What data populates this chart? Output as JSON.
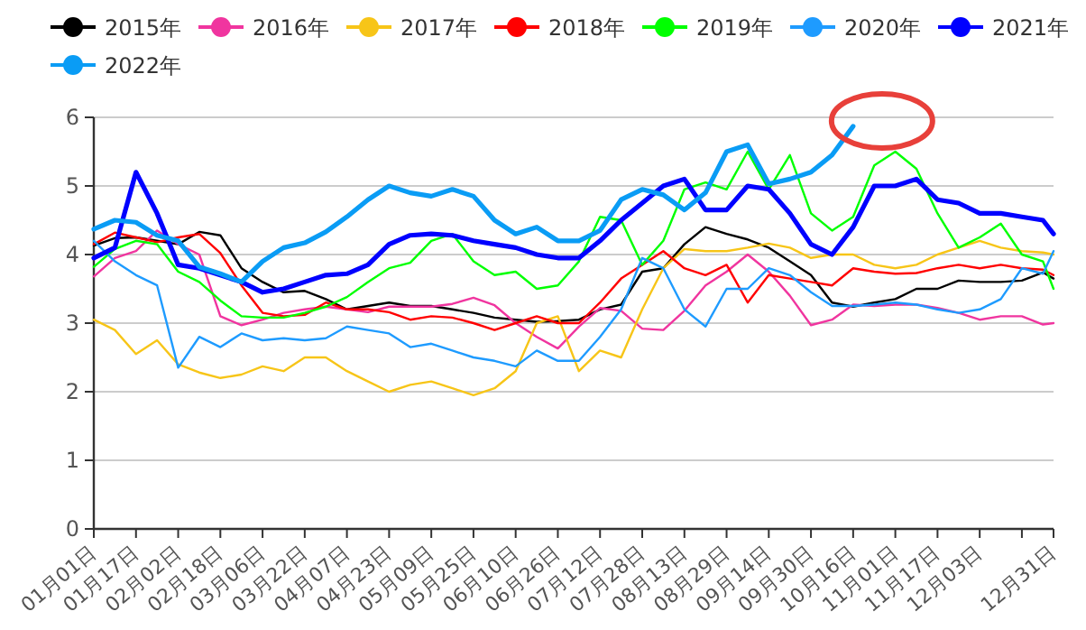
{
  "chart_data": {
    "type": "line",
    "legend": "top",
    "grid": "y",
    "x": [
      "--01-01",
      "--01-09",
      "--01-17",
      "--01-25",
      "--02-02",
      "--02-10",
      "--02-18",
      "--02-26",
      "--03-06",
      "--03-14",
      "--03-22",
      "--03-30",
      "--04-07",
      "--04-15",
      "--04-23",
      "--05-01",
      "--05-09",
      "--05-17",
      "--05-25",
      "--06-02",
      "--06-10",
      "--06-18",
      "--06-26",
      "--07-04",
      "--07-12",
      "--07-20",
      "--07-28",
      "--08-05",
      "--08-13",
      "--08-21",
      "--08-29",
      "--09-06",
      "--09-14",
      "--09-22",
      "--09-30",
      "--10-08",
      "--10-16",
      "--10-24",
      "--11-01",
      "--11-09",
      "--11-17",
      "--11-25",
      "--12-03",
      "--12-11",
      "--12-19",
      "--12-27",
      "--12-31"
    ],
    "xlim": [
      "--01-01",
      "--12-31"
    ],
    "xticks": [
      {
        "value": "--01-01",
        "label": "01月01日"
      },
      {
        "value": "--01-17",
        "label": "01月17日"
      },
      {
        "value": "--02-02",
        "label": "02月02日"
      },
      {
        "value": "--02-18",
        "label": "02月18日"
      },
      {
        "value": "--03-06",
        "label": "03月06日"
      },
      {
        "value": "--03-22",
        "label": "03月22日"
      },
      {
        "value": "--04-07",
        "label": "04月07日"
      },
      {
        "value": "--04-23",
        "label": "04月23日"
      },
      {
        "value": "--05-09",
        "label": "05月09日"
      },
      {
        "value": "--05-25",
        "label": "05月25日"
      },
      {
        "value": "--06-10",
        "label": "06月10日"
      },
      {
        "value": "--06-26",
        "label": "06月26日"
      },
      {
        "value": "--07-12",
        "label": "07月12日"
      },
      {
        "value": "--07-28",
        "label": "07月28日"
      },
      {
        "value": "--08-13",
        "label": "08月13日"
      },
      {
        "value": "--08-29",
        "label": "08月29日"
      },
      {
        "value": "--09-14",
        "label": "09月14日"
      },
      {
        "value": "--09-30",
        "label": "09月30日"
      },
      {
        "value": "--10-16",
        "label": "10月16日"
      },
      {
        "value": "--11-01",
        "label": "11月01日"
      },
      {
        "value": "--11-17",
        "label": "11月17日"
      },
      {
        "value": "--12-03",
        "label": "12月03日"
      },
      {
        "value": "--12-19",
        "label": null
      },
      {
        "value": "--12-31",
        "label": "12月31日"
      }
    ],
    "ylim": [
      0,
      6
    ],
    "yticks": [
      0,
      1,
      2,
      3,
      4,
      5,
      6
    ],
    "series": [
      {
        "name": "2015年",
        "color": "#000000",
        "values": [
          4.13,
          4.24,
          4.25,
          4.2,
          4.15,
          4.33,
          4.28,
          3.8,
          3.6,
          3.45,
          3.47,
          3.35,
          3.2,
          3.25,
          3.3,
          3.25,
          3.25,
          3.2,
          3.15,
          3.08,
          3.05,
          3.02,
          3.03,
          3.05,
          3.2,
          3.27,
          3.75,
          3.8,
          4.15,
          4.4,
          4.3,
          4.22,
          4.1,
          3.9,
          3.7,
          3.3,
          3.24,
          3.3,
          3.35,
          3.5,
          3.5,
          3.62,
          3.6,
          3.6,
          3.62,
          3.74,
          3.65
        ]
      },
      {
        "name": "2016年",
        "color": "#f0359f",
        "values": [
          3.68,
          3.95,
          4.05,
          4.35,
          4.15,
          4.0,
          3.1,
          2.97,
          3.05,
          3.15,
          3.2,
          3.24,
          3.2,
          3.16,
          3.24,
          3.24,
          3.24,
          3.28,
          3.37,
          3.26,
          3.0,
          2.8,
          2.63,
          2.95,
          3.22,
          3.18,
          2.92,
          2.9,
          3.18,
          3.55,
          3.75,
          4.0,
          3.75,
          3.4,
          2.97,
          3.05,
          3.27,
          3.25,
          3.27,
          3.27,
          3.22,
          3.15,
          3.05,
          3.1,
          3.1,
          2.98,
          3.0
        ]
      },
      {
        "name": "2017年",
        "color": "#f7c518",
        "values": [
          3.05,
          2.9,
          2.55,
          2.75,
          2.4,
          2.28,
          2.2,
          2.25,
          2.37,
          2.3,
          2.5,
          2.5,
          2.3,
          2.15,
          2.0,
          2.1,
          2.15,
          2.05,
          1.95,
          2.05,
          2.3,
          3.0,
          3.1,
          2.3,
          2.6,
          2.5,
          3.2,
          3.8,
          4.08,
          4.05,
          4.05,
          4.1,
          4.16,
          4.1,
          3.95,
          4.0,
          4.0,
          3.85,
          3.8,
          3.85,
          4.0,
          4.1,
          4.2,
          4.1,
          4.05,
          4.03,
          4.0
        ]
      },
      {
        "name": "2018年",
        "color": "#ff0000",
        "values": [
          4.15,
          4.32,
          4.25,
          4.18,
          4.25,
          4.3,
          4.02,
          3.55,
          3.15,
          3.1,
          3.12,
          3.3,
          3.2,
          3.2,
          3.16,
          3.05,
          3.1,
          3.08,
          3.0,
          2.9,
          3.0,
          3.1,
          3.0,
          3.0,
          3.3,
          3.65,
          3.85,
          4.05,
          3.8,
          3.7,
          3.85,
          3.3,
          3.7,
          3.65,
          3.6,
          3.55,
          3.8,
          3.75,
          3.72,
          3.73,
          3.8,
          3.85,
          3.8,
          3.85,
          3.8,
          3.78,
          3.7
        ]
      },
      {
        "name": "2019年",
        "color": "#00ff00",
        "values": [
          3.82,
          4.08,
          4.2,
          4.15,
          3.75,
          3.6,
          3.33,
          3.1,
          3.08,
          3.08,
          3.15,
          3.24,
          3.38,
          3.6,
          3.8,
          3.88,
          4.2,
          4.3,
          3.9,
          3.7,
          3.75,
          3.5,
          3.55,
          3.9,
          4.55,
          4.5,
          3.85,
          4.2,
          4.95,
          5.05,
          4.95,
          5.5,
          4.95,
          5.45,
          4.6,
          4.35,
          4.55,
          5.3,
          5.5,
          5.25,
          4.6,
          4.1,
          4.25,
          4.45,
          4.0,
          3.9,
          3.5
        ]
      },
      {
        "name": "2020年",
        "color": "#1e9bff",
        "values": [
          4.2,
          3.9,
          3.7,
          3.55,
          2.35,
          2.8,
          2.65,
          2.85,
          2.75,
          2.78,
          2.75,
          2.78,
          2.95,
          2.9,
          2.85,
          2.65,
          2.7,
          2.6,
          2.5,
          2.45,
          2.37,
          2.6,
          2.45,
          2.45,
          2.8,
          3.2,
          3.95,
          3.8,
          3.2,
          2.95,
          3.5,
          3.5,
          3.8,
          3.7,
          3.45,
          3.25,
          3.25,
          3.27,
          3.3,
          3.27,
          3.2,
          3.15,
          3.2,
          3.35,
          3.8,
          3.72,
          4.05
        ]
      },
      {
        "name": "2021年",
        "color": "#0000ff",
        "values": [
          3.95,
          4.1,
          5.2,
          4.6,
          3.85,
          3.8,
          3.7,
          3.6,
          3.45,
          3.5,
          3.6,
          3.7,
          3.72,
          3.85,
          4.15,
          4.28,
          4.3,
          4.28,
          4.2,
          4.15,
          4.1,
          4.0,
          3.95,
          3.95,
          4.2,
          4.5,
          4.75,
          5.0,
          5.1,
          4.65,
          4.65,
          5.0,
          4.95,
          4.6,
          4.15,
          4.0,
          4.4,
          5.0,
          5.0,
          5.1,
          4.8,
          4.75,
          4.6,
          4.6,
          4.55,
          4.5,
          4.3
        ]
      },
      {
        "name": "2022年",
        "color": "#0a9cf5",
        "values": [
          4.37,
          4.5,
          4.47,
          4.28,
          4.2,
          3.82,
          3.72,
          3.6,
          3.9,
          4.1,
          4.17,
          4.33,
          4.55,
          4.8,
          5.0,
          4.9,
          4.85,
          4.95,
          4.85,
          4.5,
          4.3,
          4.4,
          4.2,
          4.2,
          4.35,
          4.8,
          4.95,
          4.87,
          4.65,
          4.9,
          5.5,
          5.6,
          5.03,
          5.1,
          5.2,
          5.45,
          5.87,
          null,
          null,
          null,
          null,
          null,
          null,
          null,
          null,
          null,
          null
        ]
      }
    ]
  }
}
